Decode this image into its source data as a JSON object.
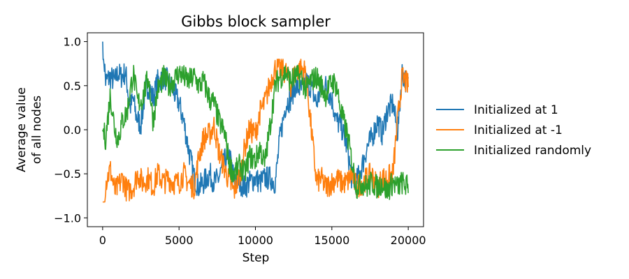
{
  "chart_data": {
    "type": "line",
    "title": "Gibbs block sampler",
    "xlabel": "Step",
    "ylabel_lines": [
      "Average value",
      "of all nodes"
    ],
    "xlim": [
      -1000,
      21000
    ],
    "ylim": [
      -1.1,
      1.1
    ],
    "xticks": [
      0,
      5000,
      10000,
      15000,
      20000
    ],
    "xtick_labels": [
      "0",
      "5000",
      "10000",
      "15000",
      "20000"
    ],
    "yticks": [
      -1.0,
      -0.5,
      0.0,
      0.5,
      1.0
    ],
    "ytick_labels": [
      "−1.0",
      "−0.5",
      "0.0",
      "0.5",
      "1.0"
    ],
    "grid": false,
    "legend_position": "right, outside plot",
    "series": [
      {
        "name": "Initialized at 1",
        "color": "#1f77b4",
        "x": [
          0,
          200,
          500,
          800,
          1000,
          1200,
          1500,
          1800,
          2000,
          2200,
          2500,
          2800,
          3000,
          3300,
          3600,
          4000,
          4300,
          4600,
          5000,
          5300,
          5600,
          6000,
          6300,
          6600,
          7000,
          7300,
          7600,
          8000,
          8300,
          8600,
          9000,
          9300,
          9600,
          10000,
          10300,
          10600,
          11000,
          11300,
          11600,
          12000,
          12300,
          12600,
          13000,
          13300,
          13600,
          14000,
          14300,
          14600,
          15000,
          15300,
          15600,
          16000,
          16300,
          16600,
          17000,
          17300,
          17600,
          18000,
          18300,
          18600,
          19000,
          19300,
          19600,
          20000
        ],
        "values": [
          1.0,
          0.55,
          0.6,
          0.55,
          0.65,
          0.6,
          0.65,
          0.25,
          0.35,
          0.15,
          0.05,
          0.45,
          0.5,
          0.35,
          0.55,
          0.6,
          0.55,
          0.45,
          0.3,
          0.1,
          -0.2,
          -0.55,
          -0.65,
          -0.6,
          -0.5,
          -0.6,
          -0.55,
          -0.35,
          -0.3,
          -0.55,
          -0.6,
          -0.65,
          -0.6,
          -0.55,
          -0.6,
          -0.55,
          -0.55,
          -0.6,
          -0.1,
          0.3,
          0.35,
          0.5,
          0.45,
          0.55,
          0.5,
          0.3,
          0.45,
          0.5,
          0.35,
          0.1,
          0.05,
          -0.2,
          -0.55,
          -0.6,
          -0.4,
          -0.2,
          -0.1,
          0.1,
          -0.05,
          0.2,
          0.3,
          -0.05,
          0.65,
          0.5
        ]
      },
      {
        "name": "Initialized at -1",
        "color": "#ff7f0e",
        "x": [
          0,
          200,
          500,
          800,
          1000,
          1300,
          1600,
          2000,
          2300,
          2600,
          3000,
          3300,
          3600,
          4000,
          4300,
          4600,
          5000,
          5300,
          5600,
          6000,
          6300,
          6600,
          7000,
          7300,
          7600,
          8000,
          8300,
          8600,
          9000,
          9300,
          9600,
          10000,
          10300,
          10600,
          11000,
          11300,
          11600,
          12000,
          12300,
          12600,
          13000,
          13300,
          13600,
          14000,
          14300,
          14600,
          15000,
          15300,
          15600,
          16000,
          16300,
          16600,
          17000,
          17300,
          17600,
          18000,
          18300,
          18600,
          19000,
          19300,
          19600,
          20000
        ],
        "values": [
          -1.0,
          -0.6,
          -0.45,
          -0.7,
          -0.65,
          -0.55,
          -0.7,
          -0.65,
          -0.5,
          -0.6,
          -0.55,
          -0.65,
          -0.5,
          -0.6,
          -0.55,
          -0.6,
          -0.6,
          -0.5,
          -0.6,
          -0.65,
          -0.3,
          -0.1,
          -0.05,
          0.05,
          -0.25,
          -0.45,
          -0.6,
          -0.7,
          -0.5,
          -0.2,
          0.0,
          -0.05,
          0.2,
          0.3,
          0.55,
          0.7,
          0.7,
          0.65,
          0.5,
          0.65,
          0.7,
          0.65,
          0.1,
          -0.6,
          -0.55,
          -0.65,
          -0.6,
          -0.55,
          -0.6,
          -0.6,
          -0.5,
          -0.65,
          -0.6,
          -0.55,
          -0.5,
          -0.65,
          -0.55,
          -0.55,
          -0.5,
          0.1,
          0.6,
          0.5
        ]
      },
      {
        "name": "Initialized randomly",
        "color": "#2ca02c",
        "x": [
          0,
          200,
          500,
          800,
          1000,
          1300,
          1600,
          2000,
          2300,
          2600,
          3000,
          3300,
          3600,
          4000,
          4300,
          4600,
          5000,
          5300,
          5600,
          6000,
          6300,
          6600,
          7000,
          7300,
          7600,
          8000,
          8300,
          8600,
          9000,
          9300,
          9600,
          10000,
          10300,
          10600,
          11000,
          11300,
          11600,
          12000,
          12300,
          12600,
          13000,
          13300,
          13600,
          14000,
          14300,
          14600,
          15000,
          15300,
          15600,
          16000,
          16300,
          16600,
          17000,
          17300,
          17600,
          18000,
          18300,
          18600,
          19000,
          19300,
          19600,
          20000
        ],
        "values": [
          0.0,
          -0.1,
          0.4,
          0.0,
          -0.1,
          0.1,
          0.2,
          0.65,
          0.3,
          0.35,
          0.6,
          0.1,
          0.45,
          0.6,
          0.5,
          0.55,
          0.65,
          0.6,
          0.55,
          0.6,
          0.5,
          0.55,
          0.35,
          0.3,
          0.1,
          -0.05,
          -0.4,
          -0.5,
          -0.4,
          -0.5,
          -0.3,
          -0.35,
          -0.2,
          -0.4,
          0.1,
          0.5,
          0.6,
          0.65,
          0.55,
          0.6,
          0.6,
          0.45,
          0.55,
          0.6,
          0.5,
          0.4,
          0.55,
          0.5,
          0.2,
          -0.05,
          -0.35,
          -0.65,
          -0.6,
          -0.65,
          -0.6,
          -0.65,
          -0.6,
          -0.7,
          -0.6,
          -0.65,
          -0.6,
          -0.65
        ]
      }
    ]
  }
}
